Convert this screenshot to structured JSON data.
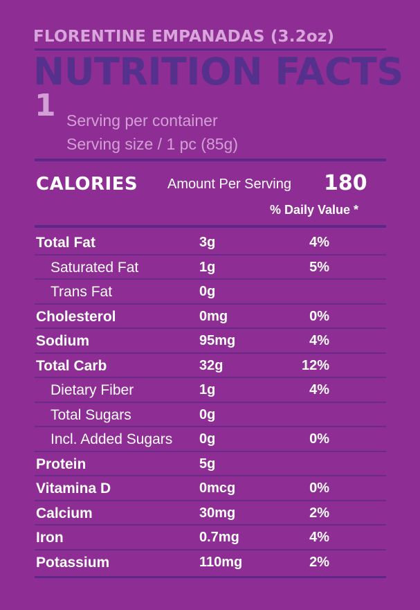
{
  "product_title": "FLORENTINE EMPANADAS (3.2oz)",
  "main_title": "NUTRITION FACTS",
  "servings": {
    "count": "1",
    "per_container": "Serving per container",
    "size": "Serving size / 1 pc (85g)"
  },
  "calories": {
    "label": "CALORIES",
    "amount_label": "Amount Per Serving",
    "value": "180",
    "daily_value_label": "% Daily Value *"
  },
  "nutrients": [
    {
      "name": "Total Fat",
      "amount": "3g",
      "dv": "4%",
      "level": "main"
    },
    {
      "name": "Saturated Fat",
      "amount": "1g",
      "dv": "5%",
      "level": "sub"
    },
    {
      "name": "Trans Fat",
      "amount": "0g",
      "dv": "",
      "level": "sub"
    },
    {
      "name": "Cholesterol",
      "amount": "0mg",
      "dv": "0%",
      "level": "main"
    },
    {
      "name": "Sodium",
      "amount": "95mg",
      "dv": "4%",
      "level": "main"
    },
    {
      "name": "Total Carb",
      "amount": "32g",
      "dv": "12%",
      "level": "main"
    },
    {
      "name": "Dietary Fiber",
      "amount": "1g",
      "dv": "4%",
      "level": "sub"
    },
    {
      "name": "Total Sugars",
      "amount": "0g",
      "dv": "",
      "level": "sub"
    },
    {
      "name": "Incl. Added Sugars",
      "amount": "0g",
      "dv": "0%",
      "level": "sub"
    },
    {
      "name": "Protein",
      "amount": "5g",
      "dv": "",
      "level": "main"
    },
    {
      "name": "Vitamina D",
      "amount": "0mcg",
      "dv": "0%",
      "level": "main"
    },
    {
      "name": "Calcium",
      "amount": "30mg",
      "dv": "2%",
      "level": "main"
    },
    {
      "name": "Iron",
      "amount": "0.7mg",
      "dv": "4%",
      "level": "main"
    },
    {
      "name": "Potassium",
      "amount": "110mg",
      "dv": "2%",
      "level": "main"
    }
  ]
}
